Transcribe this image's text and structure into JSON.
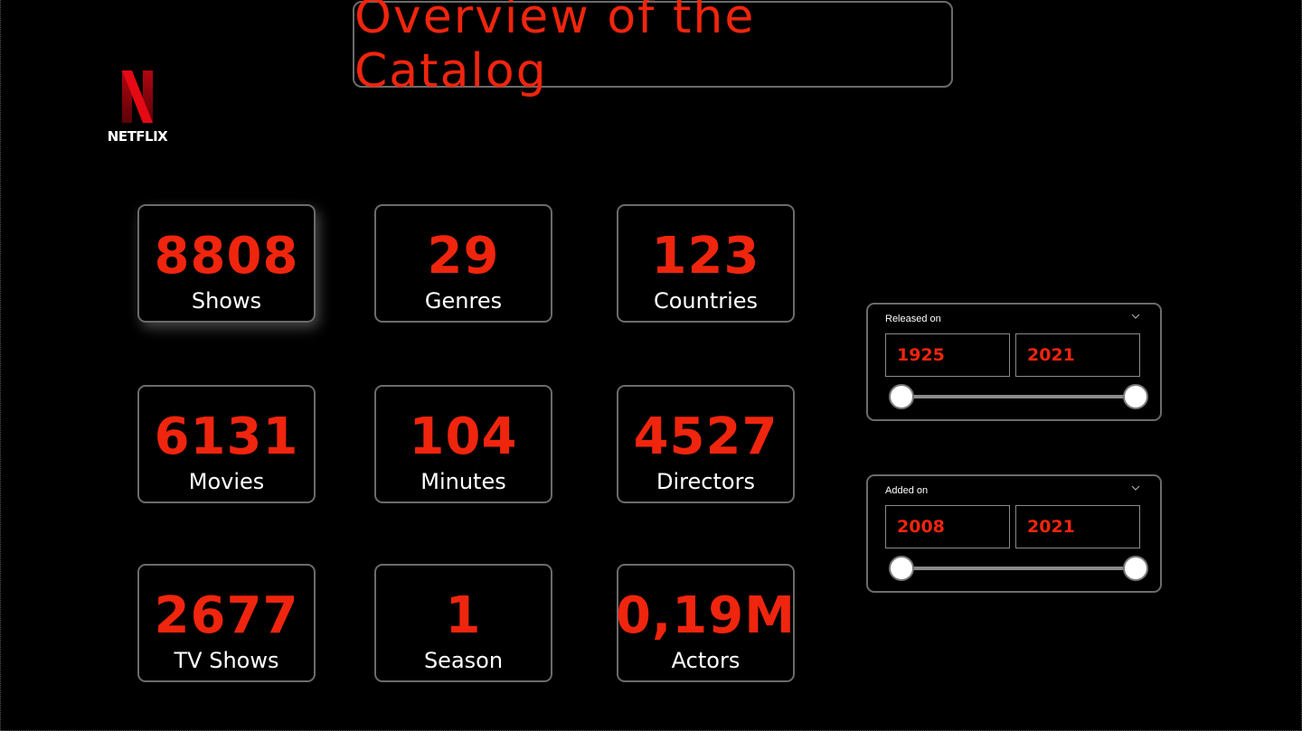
{
  "header": {
    "title": "Overview of the Catalog",
    "logo_text": "NETFLIX"
  },
  "kpis": [
    {
      "value": "8808",
      "label": "Shows"
    },
    {
      "value": "29",
      "label": "Genres"
    },
    {
      "value": "123",
      "label": "Countries"
    },
    {
      "value": "6131",
      "label": "Movies"
    },
    {
      "value": "104",
      "label": "Minutes"
    },
    {
      "value": "4527",
      "label": "Directors"
    },
    {
      "value": "2677",
      "label": "TV Shows"
    },
    {
      "value": "1",
      "label": "Season"
    },
    {
      "value": "0,19M",
      "label": "Actors"
    }
  ],
  "slicers": {
    "released": {
      "title": "Released on",
      "from": "1925",
      "to": "2021"
    },
    "added": {
      "title": "Added on",
      "from": "2008",
      "to": "2021"
    }
  },
  "colors": {
    "accent": "#f0250e",
    "border": "#6b6b6b",
    "background": "#000000"
  },
  "icons": {
    "logo": "netflix-logo-icon",
    "dropdown": "chevron-down-icon"
  }
}
